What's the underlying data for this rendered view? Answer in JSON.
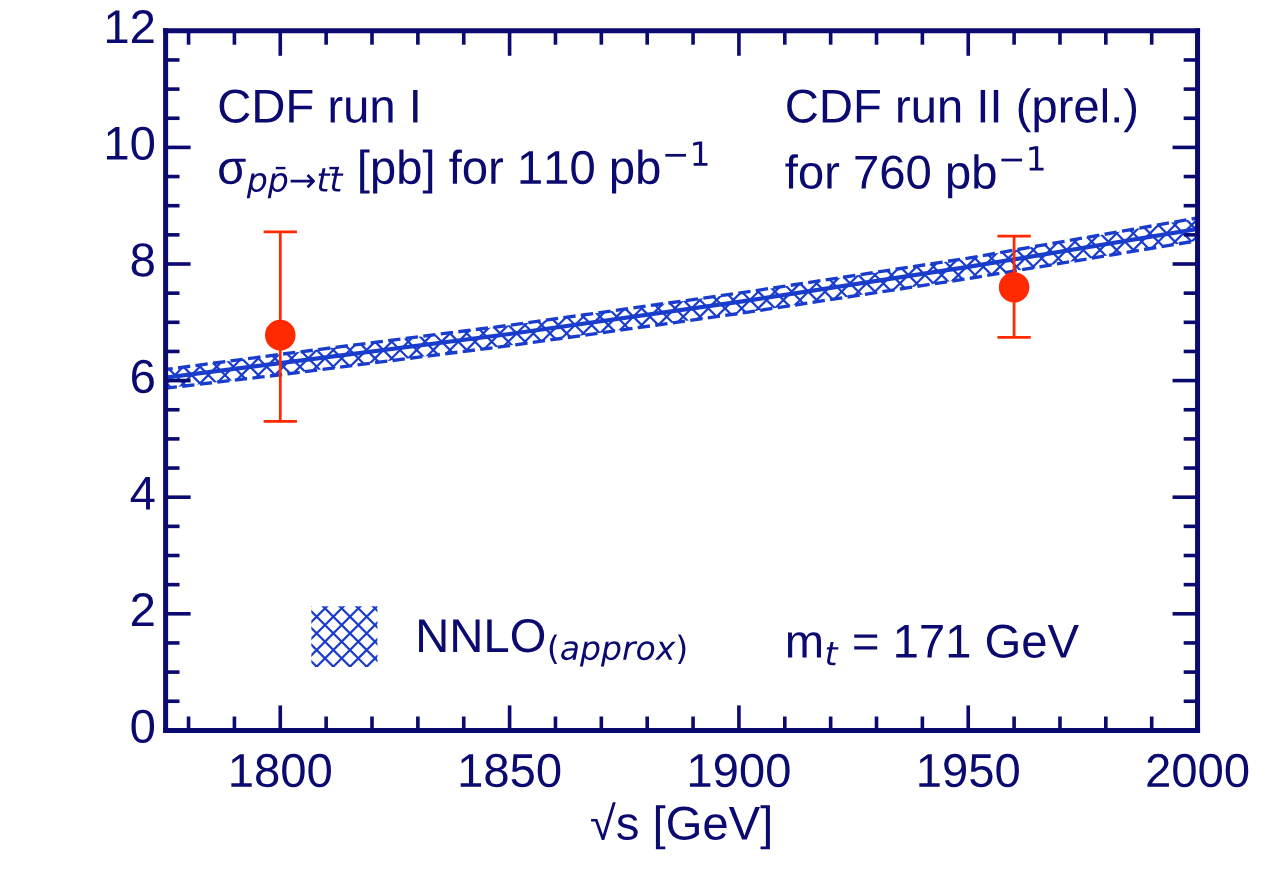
{
  "chart_data": {
    "type": "line",
    "xlabel": "√s [GeV]",
    "xlim": [
      1775,
      2000
    ],
    "xticks": [
      1800,
      1850,
      1900,
      1950,
      2000
    ],
    "ylim": [
      0,
      12
    ],
    "yticks": [
      0,
      2,
      4,
      6,
      8,
      10,
      12
    ],
    "series": [
      {
        "name": "NNLO$_{(approx)}$",
        "color": "#1a3ccc",
        "line_style": "solid",
        "marker": "none",
        "x": [
          1775,
          1800,
          1850,
          1900,
          1950,
          2000
        ],
        "values": [
          6.05,
          6.3,
          6.8,
          7.35,
          7.95,
          8.6
        ],
        "lower": [
          5.87,
          6.1,
          6.6,
          7.15,
          7.75,
          8.4
        ],
        "upper": [
          6.19,
          6.45,
          6.95,
          7.5,
          8.1,
          8.79
        ]
      },
      {
        "type": "scatter",
        "color": "#ff2a00",
        "marker": "circle",
        "x": [
          1800,
          1960
        ],
        "values": [
          6.78,
          7.6
        ],
        "errors": [
          [
            5.3,
            8.55
          ],
          [
            6.74,
            8.48
          ]
        ]
      }
    ],
    "annotations": [
      "CDF run I",
      "σ$_{pp̄→tt̄}$ [pb] for 110 pb$^{−1}$",
      "CDF run II (prel.)",
      "for 760 pb$^{−1}$",
      "m$_{t}$ = 171 GeV"
    ],
    "legend": "bottom left",
    "grid": false
  }
}
